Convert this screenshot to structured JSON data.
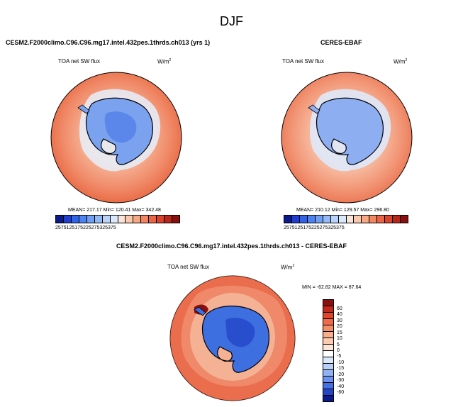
{
  "page": {
    "season": "DJF"
  },
  "panels": {
    "model": {
      "case_title": "CESM2.F2000climo.C96.C96.mg17.intel.432pes.1thrds.ch013 (yrs 1)",
      "variable": "TOA net SW flux",
      "units_base": "W/m",
      "units_exp": "2",
      "stats": "MEAN= 217.17  Min= 120.41  Max= 342.48"
    },
    "obs": {
      "case_title": "CERES-EBAF",
      "variable": "TOA net SW flux",
      "units_base": "W/m",
      "units_exp": "2",
      "stats": "MEAN= 210.12  Min= 129.57  Max= 296.80"
    },
    "diff": {
      "case_title": "CESM2.F2000climo.C96.C96.mg17.intel.432pes.1thrds.ch013 - CERES-EBAF",
      "variable": "TOA net SW flux",
      "units_base": "W/m",
      "units_exp": "2",
      "stats": "MIN = -62.82 MAX =  87.64"
    }
  },
  "colorbars": {
    "abs_ticks": [
      "25",
      "75",
      "125",
      "175",
      "225",
      "275",
      "325",
      "375"
    ],
    "abs_colors": [
      "#0a1a8c",
      "#1f3ed1",
      "#2f63e8",
      "#4d82f0",
      "#6f9ef2",
      "#93b9f5",
      "#b8d2f8",
      "#d9e7fa",
      "#fbe5d9",
      "#f9c9ae",
      "#f6a783",
      "#f28562",
      "#ea6445",
      "#d9422b",
      "#b8261a",
      "#8a1010"
    ],
    "diff_labels": [
      "60",
      "40",
      "30",
      "20",
      "15",
      "10",
      "5",
      "0",
      "-5",
      "-10",
      "-15",
      "-20",
      "-30",
      "-40",
      "-60"
    ],
    "diff_colors": [
      "#8a1010",
      "#c0281a",
      "#e0452c",
      "#ee6a48",
      "#f58e68",
      "#f8ad8c",
      "#fbcab0",
      "#fde6d8",
      "#ffffff",
      "#dbe7fb",
      "#b9cff7",
      "#92b2f2",
      "#6b92ee",
      "#4470e6",
      "#2346c9",
      "#0a1a8c"
    ]
  }
}
